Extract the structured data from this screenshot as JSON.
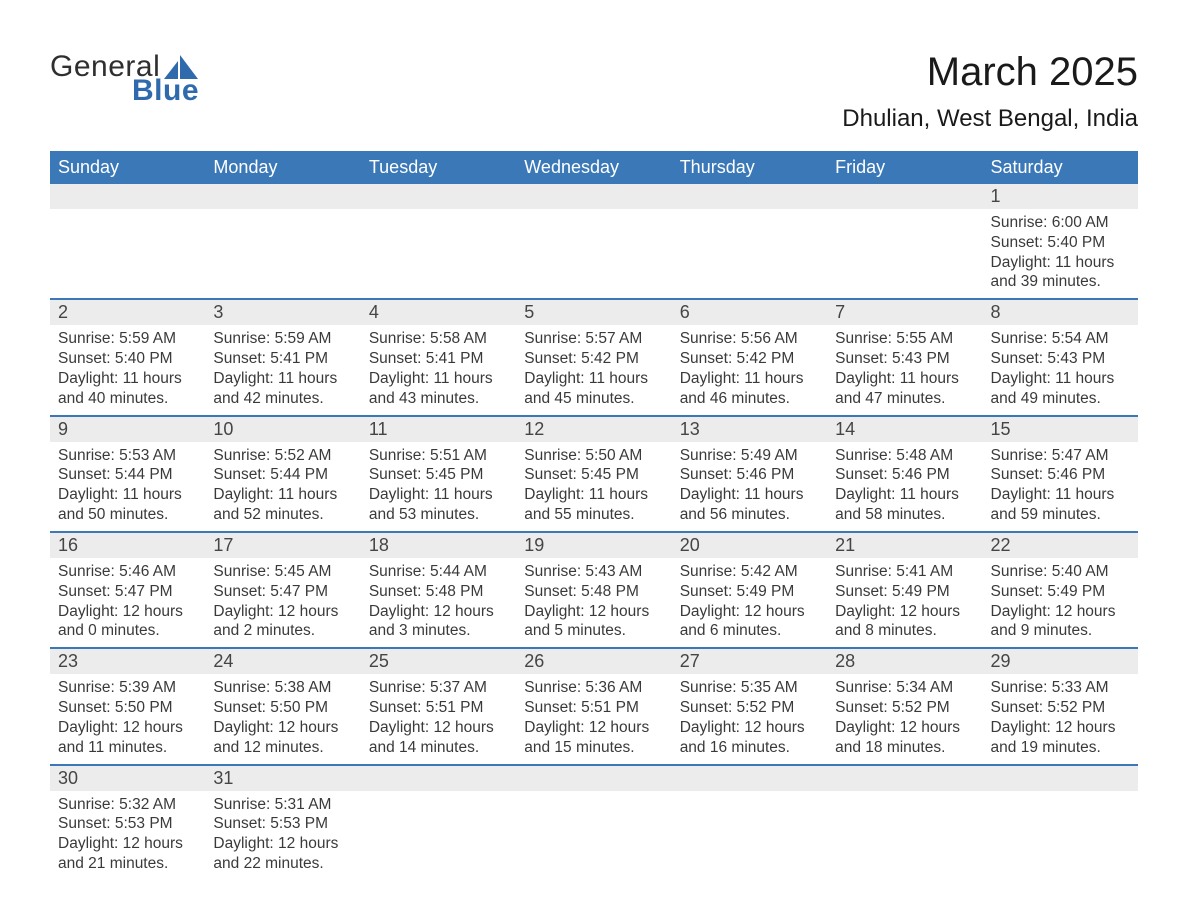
{
  "brand": {
    "general": "General",
    "blue": "Blue"
  },
  "title": "March 2025",
  "location": "Dhulian, West Bengal, India",
  "colors": {
    "header_bg": "#3a78b8",
    "header_text": "#ffffff",
    "daynum_bg": "#ececec",
    "daynum_text": "#454545",
    "body_text": "#3a3a3a",
    "row_border": "#3a78b8",
    "brand_blue": "#2f6aad",
    "brand_dark": "#2f2f2f",
    "page_bg": "#ffffff"
  },
  "typography": {
    "title_fontsize": 40,
    "location_fontsize": 24,
    "dayhdr_fontsize": 18,
    "daynum_fontsize": 18,
    "body_fontsize": 15.5
  },
  "weekdays": [
    "Sunday",
    "Monday",
    "Tuesday",
    "Wednesday",
    "Thursday",
    "Friday",
    "Saturday"
  ],
  "labels": {
    "sunrise": "Sunrise:",
    "sunset": "Sunset:",
    "daylight": "Daylight:"
  },
  "layout": {
    "first_weekday_index": 6,
    "days_in_month": 31,
    "columns": 7
  },
  "days": [
    {
      "n": 1,
      "sunrise": "6:00 AM",
      "sunset": "5:40 PM",
      "daylight": "11 hours and 39 minutes."
    },
    {
      "n": 2,
      "sunrise": "5:59 AM",
      "sunset": "5:40 PM",
      "daylight": "11 hours and 40 minutes."
    },
    {
      "n": 3,
      "sunrise": "5:59 AM",
      "sunset": "5:41 PM",
      "daylight": "11 hours and 42 minutes."
    },
    {
      "n": 4,
      "sunrise": "5:58 AM",
      "sunset": "5:41 PM",
      "daylight": "11 hours and 43 minutes."
    },
    {
      "n": 5,
      "sunrise": "5:57 AM",
      "sunset": "5:42 PM",
      "daylight": "11 hours and 45 minutes."
    },
    {
      "n": 6,
      "sunrise": "5:56 AM",
      "sunset": "5:42 PM",
      "daylight": "11 hours and 46 minutes."
    },
    {
      "n": 7,
      "sunrise": "5:55 AM",
      "sunset": "5:43 PM",
      "daylight": "11 hours and 47 minutes."
    },
    {
      "n": 8,
      "sunrise": "5:54 AM",
      "sunset": "5:43 PM",
      "daylight": "11 hours and 49 minutes."
    },
    {
      "n": 9,
      "sunrise": "5:53 AM",
      "sunset": "5:44 PM",
      "daylight": "11 hours and 50 minutes."
    },
    {
      "n": 10,
      "sunrise": "5:52 AM",
      "sunset": "5:44 PM",
      "daylight": "11 hours and 52 minutes."
    },
    {
      "n": 11,
      "sunrise": "5:51 AM",
      "sunset": "5:45 PM",
      "daylight": "11 hours and 53 minutes."
    },
    {
      "n": 12,
      "sunrise": "5:50 AM",
      "sunset": "5:45 PM",
      "daylight": "11 hours and 55 minutes."
    },
    {
      "n": 13,
      "sunrise": "5:49 AM",
      "sunset": "5:46 PM",
      "daylight": "11 hours and 56 minutes."
    },
    {
      "n": 14,
      "sunrise": "5:48 AM",
      "sunset": "5:46 PM",
      "daylight": "11 hours and 58 minutes."
    },
    {
      "n": 15,
      "sunrise": "5:47 AM",
      "sunset": "5:46 PM",
      "daylight": "11 hours and 59 minutes."
    },
    {
      "n": 16,
      "sunrise": "5:46 AM",
      "sunset": "5:47 PM",
      "daylight": "12 hours and 0 minutes."
    },
    {
      "n": 17,
      "sunrise": "5:45 AM",
      "sunset": "5:47 PM",
      "daylight": "12 hours and 2 minutes."
    },
    {
      "n": 18,
      "sunrise": "5:44 AM",
      "sunset": "5:48 PM",
      "daylight": "12 hours and 3 minutes."
    },
    {
      "n": 19,
      "sunrise": "5:43 AM",
      "sunset": "5:48 PM",
      "daylight": "12 hours and 5 minutes."
    },
    {
      "n": 20,
      "sunrise": "5:42 AM",
      "sunset": "5:49 PM",
      "daylight": "12 hours and 6 minutes."
    },
    {
      "n": 21,
      "sunrise": "5:41 AM",
      "sunset": "5:49 PM",
      "daylight": "12 hours and 8 minutes."
    },
    {
      "n": 22,
      "sunrise": "5:40 AM",
      "sunset": "5:49 PM",
      "daylight": "12 hours and 9 minutes."
    },
    {
      "n": 23,
      "sunrise": "5:39 AM",
      "sunset": "5:50 PM",
      "daylight": "12 hours and 11 minutes."
    },
    {
      "n": 24,
      "sunrise": "5:38 AM",
      "sunset": "5:50 PM",
      "daylight": "12 hours and 12 minutes."
    },
    {
      "n": 25,
      "sunrise": "5:37 AM",
      "sunset": "5:51 PM",
      "daylight": "12 hours and 14 minutes."
    },
    {
      "n": 26,
      "sunrise": "5:36 AM",
      "sunset": "5:51 PM",
      "daylight": "12 hours and 15 minutes."
    },
    {
      "n": 27,
      "sunrise": "5:35 AM",
      "sunset": "5:52 PM",
      "daylight": "12 hours and 16 minutes."
    },
    {
      "n": 28,
      "sunrise": "5:34 AM",
      "sunset": "5:52 PM",
      "daylight": "12 hours and 18 minutes."
    },
    {
      "n": 29,
      "sunrise": "5:33 AM",
      "sunset": "5:52 PM",
      "daylight": "12 hours and 19 minutes."
    },
    {
      "n": 30,
      "sunrise": "5:32 AM",
      "sunset": "5:53 PM",
      "daylight": "12 hours and 21 minutes."
    },
    {
      "n": 31,
      "sunrise": "5:31 AM",
      "sunset": "5:53 PM",
      "daylight": "12 hours and 22 minutes."
    }
  ]
}
